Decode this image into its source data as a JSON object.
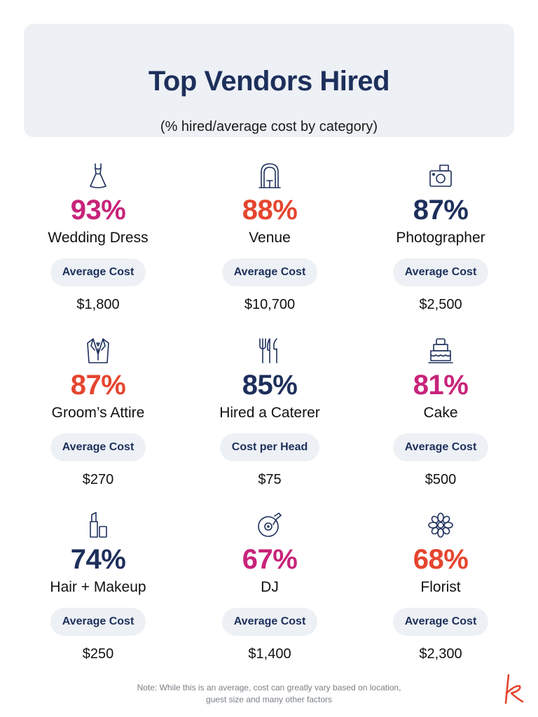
{
  "header": {
    "title": "Top Vendors Hired",
    "subtitle": "(% hired/average cost by category)"
  },
  "colors": {
    "navy": "#1d2f5b",
    "magenta": "#c8237a",
    "red": "#e5452f",
    "panel": "#edf1f5"
  },
  "vendors": [
    {
      "icon": "wedding-dress-icon",
      "percent": "93%",
      "color": "#c8237a",
      "label": "Wedding Dress",
      "cost_label": "Average Cost",
      "cost": "$1,800"
    },
    {
      "icon": "venue-arch-icon",
      "percent": "88%",
      "color": "#e5452f",
      "label": "Venue",
      "cost_label": "Average Cost",
      "cost": "$10,700"
    },
    {
      "icon": "camera-icon",
      "percent": "87%",
      "color": "#1d2f5b",
      "label": "Photographer",
      "cost_label": "Average Cost",
      "cost": "$2,500"
    },
    {
      "icon": "tuxedo-icon",
      "percent": "87%",
      "color": "#e5452f",
      "label": "Groom’s Attire",
      "cost_label": "Average Cost",
      "cost": "$270"
    },
    {
      "icon": "cutlery-icon",
      "percent": "85%",
      "color": "#1d2f5b",
      "label": "Hired a Caterer",
      "cost_label": "Cost per Head",
      "cost": "$75"
    },
    {
      "icon": "cake-icon",
      "percent": "81%",
      "color": "#c8237a",
      "label": "Cake",
      "cost_label": "Average Cost",
      "cost": "$500"
    },
    {
      "icon": "lipstick-icon",
      "percent": "74%",
      "color": "#1d2f5b",
      "label": "Hair + Makeup",
      "cost_label": "Average Cost",
      "cost": "$250"
    },
    {
      "icon": "record-icon",
      "percent": "67%",
      "color": "#c8237a",
      "label": "DJ",
      "cost_label": "Average Cost",
      "cost": "$1,400"
    },
    {
      "icon": "flower-icon",
      "percent": "68%",
      "color": "#e5452f",
      "label": "Florist",
      "cost_label": "Average Cost",
      "cost": "$2,300"
    }
  ],
  "note": {
    "line1": "Note: While this is an average, cost can greatly vary based on location,",
    "line2": "guest size and many other factors"
  },
  "logo": {
    "letter": "k",
    "color": "#e5452f"
  }
}
